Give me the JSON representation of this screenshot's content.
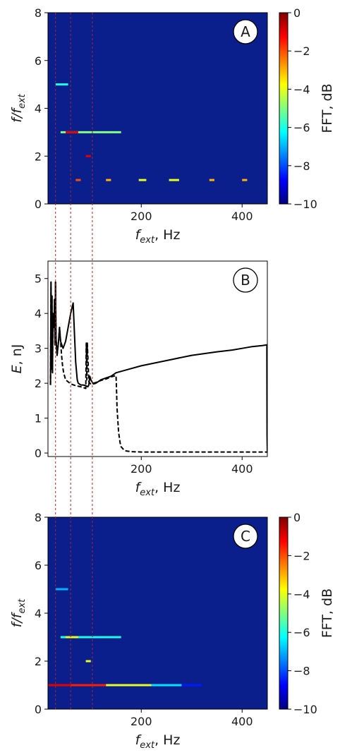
{
  "chart_data": [
    {
      "type": "heatmap",
      "panel_label": "A",
      "xlabel": {
        "main": "f",
        "sub": "ext",
        "rest": ", Hz"
      },
      "ylabel": {
        "main": "f/f",
        "sub": "ext"
      },
      "xlim": [
        15,
        450
      ],
      "ylim": [
        0,
        8
      ],
      "x_ticks": [
        200,
        400
      ],
      "x_tick_labels": [
        "200",
        "400"
      ],
      "y_ticks": [
        0,
        2,
        4,
        6,
        8
      ],
      "y_tick_labels": [
        "0",
        "2",
        "4",
        "6",
        "8"
      ],
      "background_color": "#0a1e8c",
      "colorbar": {
        "label": "FFT, dB",
        "range": [
          -10,
          0
        ],
        "ticks": [
          0,
          -2,
          -4,
          -6,
          -8,
          -10
        ],
        "tick_labels": [
          "0",
          "−2",
          "−4",
          "−6",
          "−8",
          "−10"
        ],
        "colors": [
          "#00007f",
          "#0000ff",
          "#0080ff",
          "#00ffff",
          "#80ff80",
          "#ffff00",
          "#ff8000",
          "#ff0000",
          "#7f0000"
        ]
      },
      "features": [
        {
          "ratio": 1,
          "x": [
            70,
            80
          ],
          "level_db": -2
        },
        {
          "ratio": 1,
          "x": [
            130,
            140
          ],
          "level_db": -3
        },
        {
          "ratio": 1,
          "x": [
            195,
            210
          ],
          "level_db": -4
        },
        {
          "ratio": 1,
          "x": [
            255,
            275
          ],
          "level_db": -4
        },
        {
          "ratio": 1,
          "x": [
            335,
            345
          ],
          "level_db": -3
        },
        {
          "ratio": 1,
          "x": [
            400,
            410
          ],
          "level_db": -3
        },
        {
          "ratio": 2,
          "x": [
            90,
            100
          ],
          "level_db": -1
        },
        {
          "ratio": 3,
          "x": [
            40,
            160
          ],
          "level_db": -5
        },
        {
          "ratio": 3,
          "x": [
            50,
            75
          ],
          "level_db": -1
        },
        {
          "ratio": 5,
          "x": [
            30,
            55
          ],
          "level_db": -6
        }
      ]
    },
    {
      "type": "line",
      "panel_label": "B",
      "xlabel": {
        "main": "f",
        "sub": "ext",
        "rest": ", Hz"
      },
      "ylabel": {
        "main": "E",
        "sub": "",
        "rest": ", nJ"
      },
      "xlim": [
        15,
        450
      ],
      "ylim": [
        -0.1,
        5.5
      ],
      "x_ticks": [
        200,
        400
      ],
      "x_tick_labels": [
        "200",
        "400"
      ],
      "y_ticks": [
        0,
        1,
        2,
        3,
        4,
        5
      ],
      "y_tick_labels": [
        "0",
        "1",
        "2",
        "3",
        "4",
        "5"
      ],
      "series": [
        {
          "style": "solid",
          "x": [
            20,
            21,
            22,
            23,
            24,
            25,
            27,
            28,
            29,
            30,
            31,
            33,
            36,
            38,
            40,
            45,
            50,
            55,
            60,
            65,
            70,
            73,
            74,
            75,
            80,
            85,
            90,
            94,
            96,
            98,
            100,
            102,
            105,
            110,
            115,
            120,
            130,
            140,
            150,
            175,
            200,
            250,
            300,
            350,
            380,
            400,
            420,
            440,
            449,
            449.5,
            450
          ],
          "y": [
            1.95,
            4.9,
            2.4,
            4.5,
            2.3,
            4.0,
            3.6,
            4.4,
            3.1,
            4.9,
            3.3,
            2.8,
            3.2,
            3.6,
            3.2,
            3.0,
            3.2,
            3.6,
            4.0,
            4.3,
            2.6,
            2.1,
            2.05,
            2.0,
            1.95,
            1.95,
            1.93,
            1.9,
            1.95,
            2.2,
            2.1,
            2.05,
            1.98,
            2.0,
            2.05,
            2.1,
            2.15,
            2.2,
            2.3,
            2.4,
            2.5,
            2.65,
            2.8,
            2.9,
            2.95,
            3.0,
            3.05,
            3.08,
            3.1,
            0.5,
            0.0
          ]
        },
        {
          "style": "dashed",
          "x": [
            20,
            21,
            22,
            23,
            24,
            25,
            27,
            28,
            29,
            30,
            31,
            33,
            36,
            38,
            40,
            42,
            44,
            46,
            48,
            50,
            60,
            70,
            80,
            90,
            91,
            92,
            93,
            96,
            98,
            100,
            105,
            110,
            120,
            130,
            140,
            150,
            151,
            152,
            155,
            158,
            160,
            165,
            170,
            180,
            200,
            250,
            300,
            350,
            400,
            450
          ],
          "y": [
            1.95,
            4.9,
            2.4,
            4.5,
            2.3,
            4.0,
            3.6,
            4.4,
            3.1,
            4.9,
            3.3,
            2.8,
            3.2,
            3.6,
            3.2,
            2.8,
            2.5,
            2.3,
            2.2,
            2.1,
            1.98,
            1.93,
            1.9,
            1.85,
            3.15,
            2.1,
            3.15,
            2.05,
            2.0,
            1.98,
            2.0,
            2.02,
            2.08,
            2.12,
            2.18,
            2.22,
            1.8,
            1.3,
            0.6,
            0.3,
            0.18,
            0.1,
            0.06,
            0.04,
            0.03,
            0.03,
            0.03,
            0.03,
            0.03,
            0.03
          ]
        }
      ]
    },
    {
      "type": "heatmap",
      "panel_label": "C",
      "xlabel": {
        "main": "f",
        "sub": "ext",
        "rest": ", Hz"
      },
      "ylabel": {
        "main": "f/f",
        "sub": "ext"
      },
      "xlim": [
        15,
        450
      ],
      "ylim": [
        0,
        8
      ],
      "x_ticks": [
        200,
        400
      ],
      "x_tick_labels": [
        "200",
        "400"
      ],
      "y_ticks": [
        0,
        2,
        4,
        6,
        8
      ],
      "y_tick_labels": [
        "0",
        "2",
        "4",
        "6",
        "8"
      ],
      "background_color": "#0a1e8c",
      "colorbar": {
        "label": "FFT, dB",
        "range": [
          -10,
          0
        ],
        "ticks": [
          0,
          -2,
          -4,
          -6,
          -8,
          -10
        ],
        "tick_labels": [
          "0",
          "−2",
          "−4",
          "−6",
          "−8",
          "−10"
        ],
        "colors": [
          "#00007f",
          "#0000ff",
          "#0080ff",
          "#00ffff",
          "#80ff80",
          "#ffff00",
          "#ff8000",
          "#ff0000",
          "#7f0000"
        ]
      },
      "features": [
        {
          "ratio": 1,
          "x": [
            15,
            60
          ],
          "level_db": -1
        },
        {
          "ratio": 1,
          "x": [
            60,
            130
          ],
          "level_db": -1.5
        },
        {
          "ratio": 1,
          "x": [
            130,
            220
          ],
          "level_db": -4
        },
        {
          "ratio": 1,
          "x": [
            220,
            280
          ],
          "level_db": -6.5
        },
        {
          "ratio": 1,
          "x": [
            280,
            320
          ],
          "level_db": -8.5
        },
        {
          "ratio": 2,
          "x": [
            90,
            100
          ],
          "level_db": -4
        },
        {
          "ratio": 3,
          "x": [
            40,
            160
          ],
          "level_db": -6
        },
        {
          "ratio": 3,
          "x": [
            50,
            75
          ],
          "level_db": -4
        },
        {
          "ratio": 5,
          "x": [
            30,
            55
          ],
          "level_db": -7
        }
      ]
    }
  ],
  "guide_lines": {
    "color": "#b22222",
    "x_values": [
      30,
      60,
      103
    ]
  }
}
